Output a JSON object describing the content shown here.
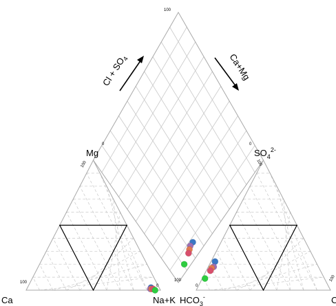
{
  "chart_data": {
    "type": "scatter",
    "subtype": "piper-diagram",
    "title": "",
    "grid": true,
    "labels": {
      "cation_bottom_left": "Ca",
      "cation_left_vertex": "Mg",
      "cation_bottom_right": "Na+K",
      "anion_bottom_left": "HCO",
      "anion_bottom_left_sub": "3",
      "anion_bottom_left_sup": "-",
      "anion_top": "SO",
      "anion_top_sub": "4",
      "anion_top_sup": "2-",
      "anion_bottom_right": "Cl",
      "diamond_left_axis": "Cl + SO",
      "diamond_left_axis_sub": "4",
      "diamond_right_axis": "Ca+Mg"
    },
    "ticks": {
      "diamond_top": "100",
      "diamond_left": "0",
      "diamond_right": "0",
      "diamond_bottom": "100",
      "mg_vertex": "100",
      "so4_vertex": "100",
      "ca_corner": "100",
      "nak_zero": "0",
      "hco3_zero": "0",
      "cl_corner": "100"
    },
    "series": [
      {
        "color": "#3b78c4",
        "cations_pct": {
          "Ca": 6,
          "Mg": 2,
          "NaK": 92
        },
        "anions_pct": {
          "HCO3": 75,
          "SO4": 22,
          "Cl": 3
        },
        "diamond": {
          "ClSO4": 25,
          "CaMg": 8
        }
      },
      {
        "color": "#9d6fb3",
        "cations_pct": {
          "Ca": 7,
          "Mg": 1,
          "NaK": 92
        },
        "anions_pct": {
          "HCO3": 78,
          "SO4": 18,
          "Cl": 4
        },
        "diamond": {
          "ClSO4": 22,
          "CaMg": 8
        }
      },
      {
        "color": "#e07a50",
        "cations_pct": {
          "Ca": 6,
          "Mg": 1,
          "NaK": 93
        },
        "anions_pct": {
          "HCO3": 80,
          "SO4": 17,
          "Cl": 3
        },
        "diamond": {
          "ClSO4": 20,
          "CaMg": 7
        }
      },
      {
        "color": "#d84f6c",
        "cations_pct": {
          "Ca": 5,
          "Mg": 1,
          "NaK": 94
        },
        "anions_pct": {
          "HCO3": 82,
          "SO4": 15,
          "Cl": 3
        },
        "diamond": {
          "ClSO4": 18,
          "CaMg": 6
        }
      },
      {
        "color": "#2ecc40",
        "cations_pct": {
          "Ca": 4,
          "Mg": 0,
          "NaK": 96
        },
        "anions_pct": {
          "HCO3": 89,
          "SO4": 9,
          "Cl": 2
        },
        "diamond": {
          "ClSO4": 11,
          "CaMg": 4
        }
      }
    ]
  }
}
